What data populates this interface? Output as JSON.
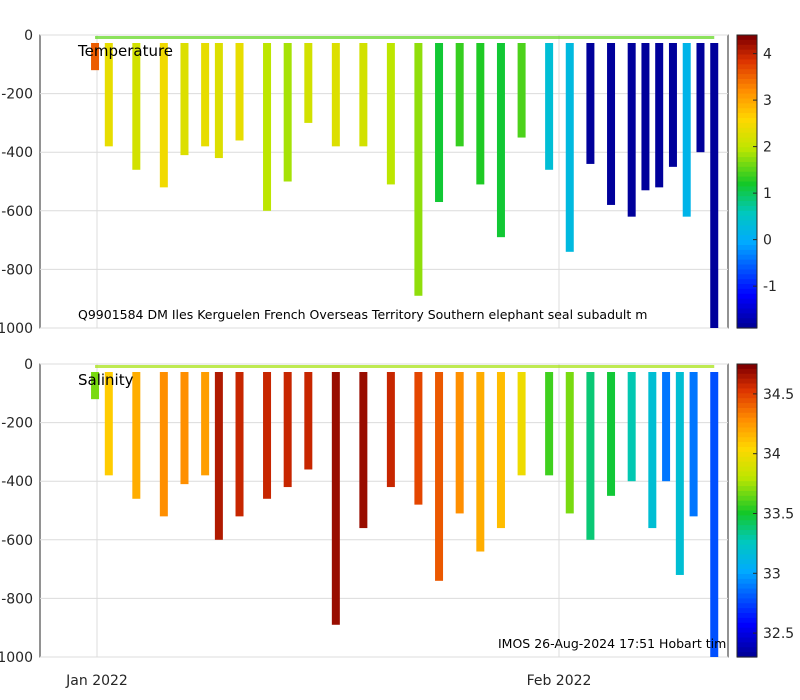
{
  "chart_data": [
    {
      "type": "heatmap",
      "variable": "Temperature",
      "ylim": [
        -1000,
        0
      ],
      "yticks": [
        0,
        -200,
        -400,
        -600,
        -800,
        -1000
      ],
      "ytick_labels": [
        "0",
        "-200",
        "-400",
        "-600",
        "-800",
        "-1000"
      ],
      "clim": [
        -1.9,
        4.4
      ],
      "cbar_ticks": [
        4,
        3,
        2,
        1,
        0,
        -1
      ],
      "cbar_tick_labels": [
        "4",
        "3",
        "2",
        "1",
        "0",
        "-1"
      ],
      "annotation": "Q9901584 DM Iles Kerguelen French Overseas Territory Southern elephant seal subadult m",
      "profiles": [
        {
          "t": 0.08,
          "depth": 120,
          "value": 3.6
        },
        {
          "t": 0.1,
          "depth": 380,
          "value": 2.4
        },
        {
          "t": 0.14,
          "depth": 460,
          "value": 2.2
        },
        {
          "t": 0.18,
          "depth": 520,
          "value": 2.5
        },
        {
          "t": 0.21,
          "depth": 410,
          "value": 2.3
        },
        {
          "t": 0.24,
          "depth": 380,
          "value": 2.4
        },
        {
          "t": 0.26,
          "depth": 420,
          "value": 2.3
        },
        {
          "t": 0.29,
          "depth": 360,
          "value": 2.4
        },
        {
          "t": 0.33,
          "depth": 600,
          "value": 2.0
        },
        {
          "t": 0.36,
          "depth": 500,
          "value": 1.9
        },
        {
          "t": 0.39,
          "depth": 300,
          "value": 2.2
        },
        {
          "t": 0.43,
          "depth": 380,
          "value": 2.3
        },
        {
          "t": 0.47,
          "depth": 380,
          "value": 2.2
        },
        {
          "t": 0.51,
          "depth": 510,
          "value": 2.0
        },
        {
          "t": 0.55,
          "depth": 890,
          "value": 1.8
        },
        {
          "t": 0.58,
          "depth": 570,
          "value": 1.2
        },
        {
          "t": 0.61,
          "depth": 380,
          "value": 1.4
        },
        {
          "t": 0.64,
          "depth": 510,
          "value": 1.3
        },
        {
          "t": 0.67,
          "depth": 690,
          "value": 1.2
        },
        {
          "t": 0.7,
          "depth": 350,
          "value": 1.5
        },
        {
          "t": 0.74,
          "depth": 460,
          "value": 0.4
        },
        {
          "t": 0.77,
          "depth": 740,
          "value": 0.3
        },
        {
          "t": 0.8,
          "depth": 440,
          "value": -1.8
        },
        {
          "t": 0.83,
          "depth": 580,
          "value": -1.8
        },
        {
          "t": 0.86,
          "depth": 620,
          "value": -1.8
        },
        {
          "t": 0.88,
          "depth": 530,
          "value": -1.8
        },
        {
          "t": 0.9,
          "depth": 520,
          "value": -1.8
        },
        {
          "t": 0.92,
          "depth": 450,
          "value": -1.8
        },
        {
          "t": 0.94,
          "depth": 620,
          "value": 0.2
        },
        {
          "t": 0.96,
          "depth": 400,
          "value": -1.8
        },
        {
          "t": 0.98,
          "depth": 1000,
          "value": -1.8
        }
      ]
    },
    {
      "type": "heatmap",
      "variable": "Salinity",
      "ylim": [
        -1000,
        0
      ],
      "yticks": [
        0,
        -200,
        -400,
        -600,
        -800,
        -1000
      ],
      "ytick_labels": [
        "0",
        "-200",
        "-400",
        "-600",
        "-800",
        "-1000"
      ],
      "clim": [
        32.3,
        34.75
      ],
      "cbar_ticks": [
        34.5,
        34,
        33.5,
        33,
        32.5
      ],
      "cbar_tick_labels": [
        "34.5",
        "34",
        "33.5",
        "33",
        "32.5"
      ],
      "xtick_labels": [
        "Jan 2022",
        "Feb 2022"
      ],
      "annotation": "IMOS 26-Aug-2024 17:51 Hobart tim",
      "profiles": [
        {
          "t": 0.08,
          "depth": 120,
          "value": 33.7
        },
        {
          "t": 0.1,
          "depth": 380,
          "value": 34.1
        },
        {
          "t": 0.14,
          "depth": 460,
          "value": 34.2
        },
        {
          "t": 0.18,
          "depth": 520,
          "value": 34.3
        },
        {
          "t": 0.21,
          "depth": 410,
          "value": 34.3
        },
        {
          "t": 0.24,
          "depth": 380,
          "value": 34.25
        },
        {
          "t": 0.26,
          "depth": 600,
          "value": 34.65
        },
        {
          "t": 0.29,
          "depth": 520,
          "value": 34.6
        },
        {
          "t": 0.33,
          "depth": 460,
          "value": 34.6
        },
        {
          "t": 0.36,
          "depth": 420,
          "value": 34.6
        },
        {
          "t": 0.39,
          "depth": 360,
          "value": 34.6
        },
        {
          "t": 0.43,
          "depth": 890,
          "value": 34.7
        },
        {
          "t": 0.47,
          "depth": 560,
          "value": 34.7
        },
        {
          "t": 0.51,
          "depth": 420,
          "value": 34.6
        },
        {
          "t": 0.55,
          "depth": 480,
          "value": 34.5
        },
        {
          "t": 0.58,
          "depth": 740,
          "value": 34.45
        },
        {
          "t": 0.61,
          "depth": 510,
          "value": 34.3
        },
        {
          "t": 0.64,
          "depth": 640,
          "value": 34.2
        },
        {
          "t": 0.67,
          "depth": 560,
          "value": 34.15
        },
        {
          "t": 0.7,
          "depth": 380,
          "value": 34.0
        },
        {
          "t": 0.74,
          "depth": 380,
          "value": 33.6
        },
        {
          "t": 0.77,
          "depth": 510,
          "value": 33.7
        },
        {
          "t": 0.8,
          "depth": 600,
          "value": 33.4
        },
        {
          "t": 0.83,
          "depth": 450,
          "value": 33.5
        },
        {
          "t": 0.86,
          "depth": 400,
          "value": 33.3
        },
        {
          "t": 0.89,
          "depth": 560,
          "value": 33.2
        },
        {
          "t": 0.91,
          "depth": 400,
          "value": 32.9
        },
        {
          "t": 0.93,
          "depth": 720,
          "value": 33.2
        },
        {
          "t": 0.95,
          "depth": 520,
          "value": 32.9
        },
        {
          "t": 0.98,
          "depth": 1000,
          "value": 32.8
        }
      ]
    }
  ]
}
